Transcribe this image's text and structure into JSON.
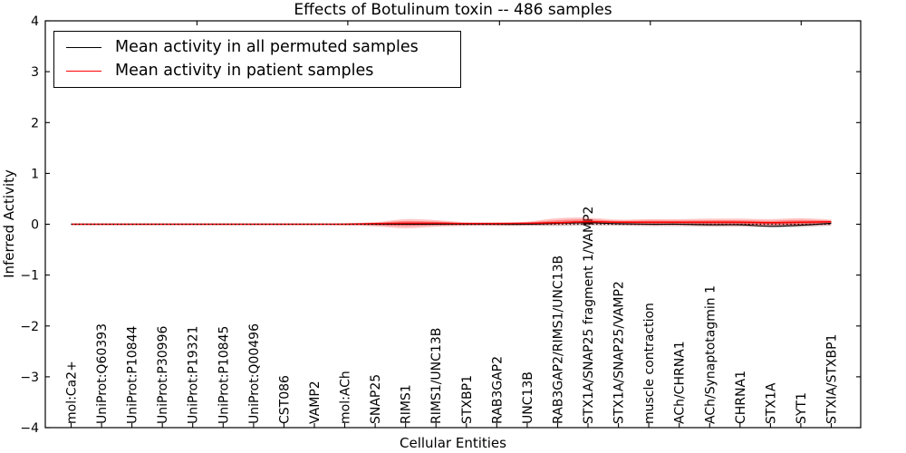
{
  "chart_data": {
    "type": "line",
    "title": "Effects of Botulinum toxin -- 486 samples",
    "xlabel": "Cellular Entities",
    "ylabel": "Inferred Activity",
    "ylim": [
      -4,
      4
    ],
    "yticks": [
      4,
      3,
      2,
      1,
      0,
      -1,
      -2,
      -3,
      -4
    ],
    "grid": false,
    "legend_position": "upper left",
    "zero_reference_line": {
      "y": 0,
      "style": "dotted",
      "color": "#000000"
    },
    "categories": [
      "mol:Ca2+",
      "UniProt:Q60393",
      "UniProt:P10844",
      "UniProt:P30996",
      "UniProt:P19321",
      "UniProt:P10845",
      "UniProt:Q00496",
      "CST086",
      "VAMP2",
      "mol:ACh",
      "SNAP25",
      "RIMS1",
      "RIMS1/UNC13B",
      "STXBP1",
      "RAB3GAP2",
      "UNC13B",
      "RAB3GAP2/RIMS1/UNC13B",
      "STX1A/SNAP25 fragment 1/VAMP2",
      "STX1A/SNAP25/VAMP2",
      "muscle contraction",
      "ACh/CHRNA1",
      "ACh/Synaptotagmin 1",
      "CHRNA1",
      "STX1A",
      "SYT1",
      "STXIA/STXBP1"
    ],
    "series": [
      {
        "name": "Mean activity in all permuted samples",
        "color": "#000000",
        "band_color": "rgba(0,0,0,0.13)",
        "values": [
          0,
          0,
          0,
          0,
          0,
          0,
          0,
          0,
          0,
          0,
          0,
          0,
          0,
          0,
          0,
          0,
          0.02,
          0.03,
          0.01,
          0,
          0,
          -0.01,
          -0.01,
          -0.04,
          -0.02,
          0.02
        ],
        "band_high": [
          0.02,
          0.02,
          0.02,
          0.02,
          0.02,
          0.02,
          0.02,
          0.02,
          0.02,
          0.02,
          0.03,
          0.03,
          0.03,
          0.03,
          0.03,
          0.03,
          0.05,
          0.06,
          0.04,
          0.04,
          0.04,
          0.04,
          0.04,
          0.03,
          0.04,
          0.05
        ],
        "band_low": [
          -0.02,
          -0.02,
          -0.02,
          -0.02,
          -0.02,
          -0.02,
          -0.02,
          -0.02,
          -0.02,
          -0.02,
          -0.03,
          -0.03,
          -0.03,
          -0.03,
          -0.03,
          -0.03,
          -0.04,
          -0.03,
          -0.03,
          -0.04,
          -0.04,
          -0.05,
          -0.05,
          -0.07,
          -0.06,
          -0.03
        ]
      },
      {
        "name": "Mean activity in patient samples",
        "color": "#ff0000",
        "band_color": "rgba(255,0,0,0.22)",
        "band_inner_color": "rgba(255,0,0,0.32)",
        "values": [
          0,
          0,
          0,
          0,
          0,
          0,
          0,
          0,
          0,
          0,
          0.01,
          0.02,
          0.02,
          0.01,
          0.01,
          0.02,
          0.03,
          0.05,
          0.04,
          0.04,
          0.04,
          0.04,
          0.04,
          0.03,
          0.04,
          0.05
        ],
        "band_high": [
          0.01,
          0.01,
          0.01,
          0.01,
          0.01,
          0.01,
          0.01,
          0.01,
          0.01,
          0.02,
          0.04,
          0.1,
          0.08,
          0.04,
          0.04,
          0.05,
          0.12,
          0.13,
          0.09,
          0.1,
          0.1,
          0.11,
          0.11,
          0.1,
          0.12,
          0.09
        ],
        "band_low": [
          -0.01,
          -0.01,
          -0.01,
          -0.01,
          -0.01,
          -0.01,
          -0.01,
          -0.01,
          -0.01,
          -0.02,
          -0.04,
          -0.08,
          -0.05,
          -0.03,
          -0.03,
          -0.03,
          -0.02,
          -0.01,
          -0.02,
          -0.03,
          -0.03,
          -0.04,
          -0.04,
          -0.05,
          -0.04,
          -0.02
        ]
      }
    ]
  }
}
